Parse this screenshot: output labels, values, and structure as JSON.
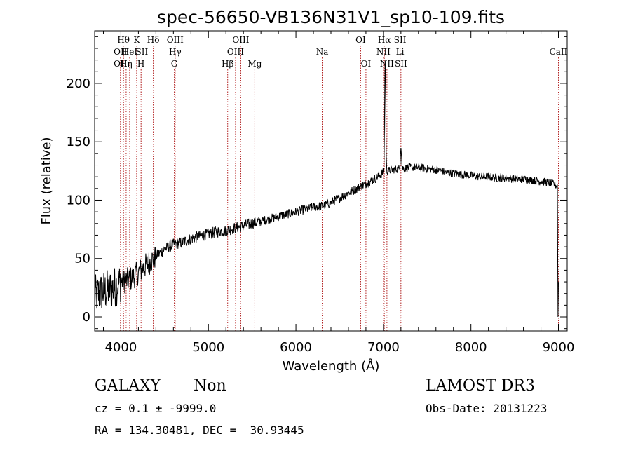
{
  "chart_data": {
    "type": "line",
    "title": "spec-56650-VB136N31V1_sp10-109.fits",
    "xlabel": "Wavelength (Å)",
    "ylabel": "Flux (relative)",
    "xlim": [
      3700,
      9100
    ],
    "ylim": [
      -12,
      245
    ],
    "xticks": [
      4000,
      5000,
      6000,
      7000,
      8000,
      9000
    ],
    "yticks": [
      0,
      50,
      100,
      150,
      200
    ],
    "spectrum_anchors": [
      [
        3700,
        18
      ],
      [
        3800,
        22
      ],
      [
        3900,
        24
      ],
      [
        4000,
        30
      ],
      [
        4100,
        32
      ],
      [
        4200,
        38
      ],
      [
        4300,
        45
      ],
      [
        4400,
        52
      ],
      [
        4500,
        58
      ],
      [
        4600,
        62
      ],
      [
        4700,
        64
      ],
      [
        4800,
        67
      ],
      [
        4900,
        69
      ],
      [
        5000,
        71
      ],
      [
        5100,
        73
      ],
      [
        5200,
        74
      ],
      [
        5300,
        76
      ],
      [
        5400,
        78
      ],
      [
        5500,
        80
      ],
      [
        5600,
        82
      ],
      [
        5700,
        84
      ],
      [
        5800,
        86
      ],
      [
        5900,
        88
      ],
      [
        6000,
        90
      ],
      [
        6100,
        92
      ],
      [
        6200,
        94
      ],
      [
        6300,
        95
      ],
      [
        6400,
        98
      ],
      [
        6500,
        102
      ],
      [
        6600,
        106
      ],
      [
        6700,
        110
      ],
      [
        6800,
        114
      ],
      [
        6900,
        118
      ],
      [
        7000,
        124
      ],
      [
        7100,
        126
      ],
      [
        7200,
        127
      ],
      [
        7300,
        128
      ],
      [
        7400,
        128
      ],
      [
        7500,
        127
      ],
      [
        7600,
        126
      ],
      [
        7700,
        124
      ],
      [
        7800,
        123
      ],
      [
        7900,
        122
      ],
      [
        8000,
        121
      ],
      [
        8100,
        120
      ],
      [
        8200,
        120
      ],
      [
        8300,
        119
      ],
      [
        8400,
        119
      ],
      [
        8500,
        118
      ],
      [
        8600,
        118
      ],
      [
        8700,
        117
      ],
      [
        8800,
        116
      ],
      [
        8900,
        115
      ],
      [
        8990,
        112
      ]
    ],
    "emission_features": [
      {
        "label": "Hα",
        "x": 7020,
        "peak": 220
      },
      {
        "label": "SII",
        "x": 7200,
        "peak": 147
      }
    ],
    "spectral_lines": [
      {
        "label": "OII",
        "x": 3995,
        "row": 2
      },
      {
        "label": "OII",
        "x": 3995,
        "row": 3
      },
      {
        "label": "Hθ",
        "x": 4030,
        "row": 1
      },
      {
        "label": "Hη",
        "x": 4060,
        "row": 3
      },
      {
        "label": "HeI",
        "x": 4100,
        "row": 2
      },
      {
        "label": "K",
        "x": 4180,
        "row": 1
      },
      {
        "label": "H",
        "x": 4230,
        "row": 3
      },
      {
        "label": "SII",
        "x": 4240,
        "row": 2
      },
      {
        "label": "Hδ",
        "x": 4370,
        "row": 1
      },
      {
        "label": "OIII",
        "x": 4620,
        "row": 1
      },
      {
        "label": "Hγ",
        "x": 4620,
        "row": 2
      },
      {
        "label": "G",
        "x": 4610,
        "row": 3
      },
      {
        "label": "Hβ",
        "x": 5220,
        "row": 3
      },
      {
        "label": "OIII",
        "x": 5370,
        "row": 1
      },
      {
        "label": "OIII",
        "x": 5310,
        "row": 2
      },
      {
        "label": "Mg",
        "x": 5530,
        "row": 3
      },
      {
        "label": "Na",
        "x": 6300,
        "row": 2
      },
      {
        "label": "OI",
        "x": 6740,
        "row": 1
      },
      {
        "label": "OI",
        "x": 6800,
        "row": 3
      },
      {
        "label": "Hα",
        "x": 7010,
        "row": 1
      },
      {
        "label": "NII",
        "x": 7000,
        "row": 2
      },
      {
        "label": "NII",
        "x": 7040,
        "row": 3
      },
      {
        "label": "SII",
        "x": 7190,
        "row": 1
      },
      {
        "label": "Li",
        "x": 7190,
        "row": 2
      },
      {
        "label": "SII",
        "x": 7200,
        "row": 3
      },
      {
        "label": "CaII",
        "x": 9000,
        "row": 2
      }
    ],
    "line_color": "#000000",
    "marker_color": "#b22222"
  },
  "footer": {
    "class": "GALAXY",
    "subclass": "Non",
    "survey": "LAMOST DR3",
    "cz": "cz = 0.1 ± -9999.0",
    "obs_date": "Obs-Date: 20131223",
    "coords": "RA = 134.30481, DEC =  30.93445"
  }
}
